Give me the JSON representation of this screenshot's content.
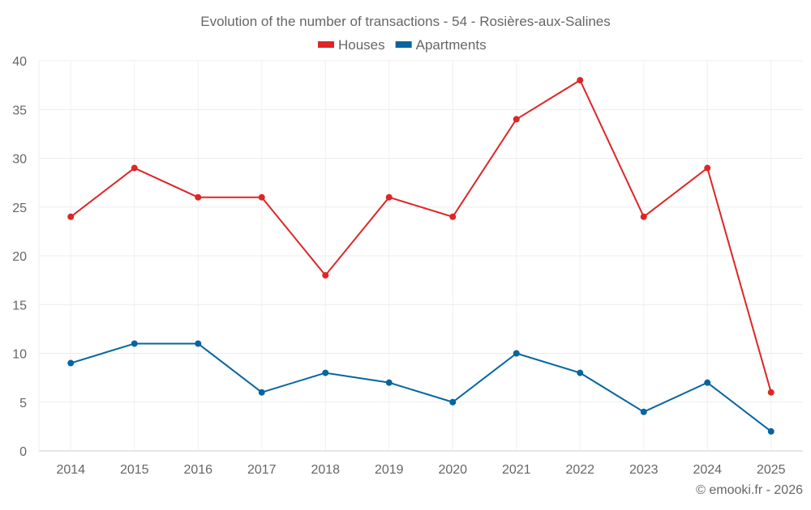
{
  "chart_data": {
    "type": "line",
    "title": "Evolution of the number of transactions - 54 - Rosières-aux-Salines",
    "categories": [
      "2014",
      "2015",
      "2016",
      "2017",
      "2018",
      "2019",
      "2020",
      "2021",
      "2022",
      "2023",
      "2024",
      "2025"
    ],
    "series": [
      {
        "name": "Houses",
        "color": "#dd2626",
        "values": [
          24,
          29,
          26,
          26,
          18,
          26,
          24,
          34,
          38,
          24,
          29,
          6
        ]
      },
      {
        "name": "Apartments",
        "color": "#0565a0",
        "values": [
          9,
          11,
          11,
          6,
          8,
          7,
          5,
          10,
          8,
          4,
          7,
          2
        ]
      }
    ],
    "ylim": [
      0,
      40
    ],
    "yticks": [
      0,
      5,
      10,
      15,
      20,
      25,
      30,
      35,
      40
    ],
    "grid": true,
    "legend": "top-center",
    "credit": "© emooki.fr - 2026"
  }
}
